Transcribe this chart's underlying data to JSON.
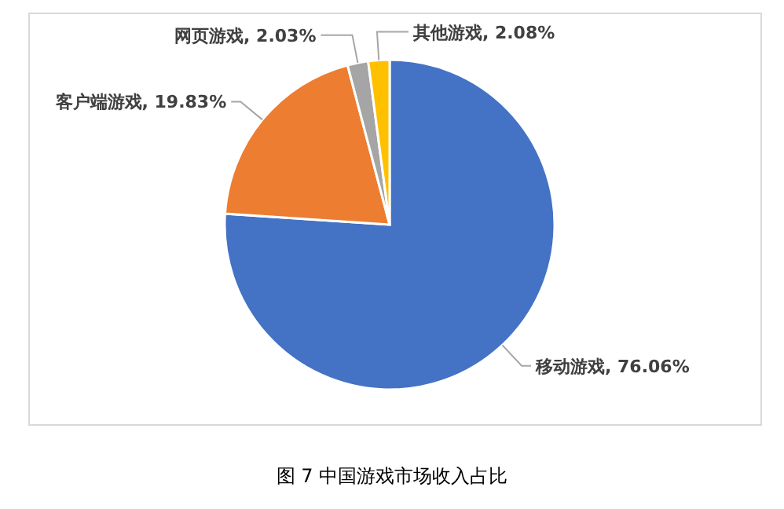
{
  "chart_data": {
    "type": "pie",
    "title": "图 7 中国游戏市场收入占比",
    "categories": [
      "移动游戏",
      "客户端游戏",
      "网页游戏",
      "其他游戏"
    ],
    "values": [
      76.06,
      19.83,
      2.03,
      2.08
    ],
    "colors": [
      "#4472c4",
      "#ed7d31",
      "#a5a5a5",
      "#ffc000"
    ],
    "value_labels": [
      "76.06%",
      "19.83%",
      "2.03%",
      "2.08%"
    ],
    "legend": false
  }
}
